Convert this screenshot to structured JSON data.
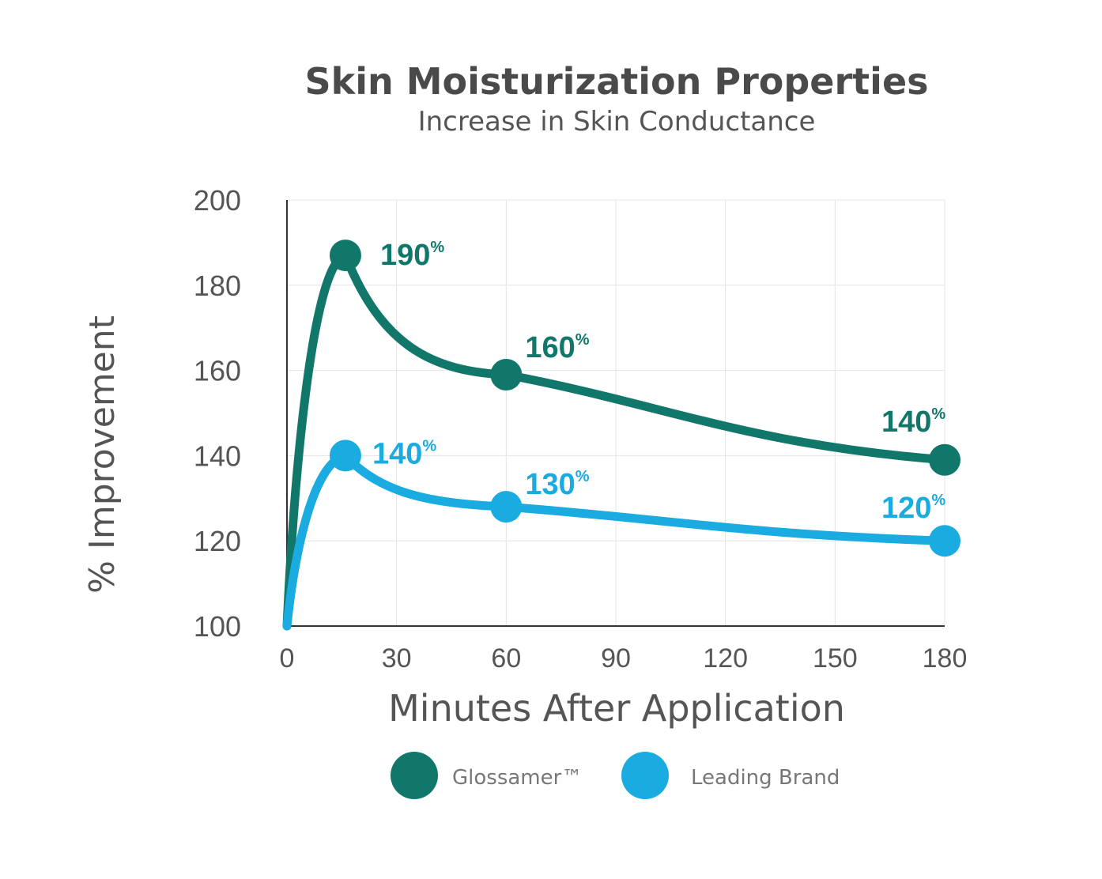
{
  "chart_data": {
    "type": "line",
    "title": "Skin Moisturization Properties",
    "subtitle": "Increase in Skin Conductance",
    "xlabel": "Minutes After Application",
    "ylabel": "% Improvement",
    "xlim": [
      0,
      180
    ],
    "ylim": [
      100,
      200
    ],
    "x_ticks": [
      "0",
      "30",
      "60",
      "90",
      "120",
      "150",
      "180"
    ],
    "y_ticks": [
      "200",
      "180",
      "160",
      "140",
      "120",
      "100"
    ],
    "grid": true,
    "legend": "bottom",
    "series": [
      {
        "name": "Glossamer™",
        "color": "#11776a",
        "points": [
          {
            "x": 0,
            "y": 100
          },
          {
            "x": 16,
            "y": 187,
            "label": "190",
            "unit": "%"
          },
          {
            "x": 60,
            "y": 159,
            "label": "160",
            "unit": "%"
          },
          {
            "x": 180,
            "y": 139,
            "label": "140",
            "unit": "%"
          }
        ]
      },
      {
        "name": "Leading Brand",
        "color": "#1aabe0",
        "points": [
          {
            "x": 0,
            "y": 100
          },
          {
            "x": 16,
            "y": 140,
            "label": "140",
            "unit": "%"
          },
          {
            "x": 60,
            "y": 128,
            "label": "130",
            "unit": "%"
          },
          {
            "x": 180,
            "y": 120,
            "label": "120",
            "unit": "%"
          }
        ]
      }
    ]
  }
}
